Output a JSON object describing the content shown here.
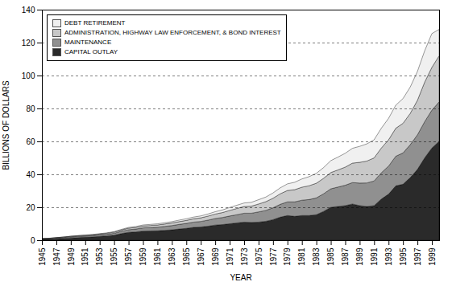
{
  "chart_data": {
    "type": "area",
    "stacked": true,
    "xlabel": "YEAR",
    "ylabel": "BILLIONS OF DOLLARS",
    "x": [
      1945,
      1946,
      1947,
      1948,
      1949,
      1950,
      1951,
      1952,
      1953,
      1954,
      1955,
      1956,
      1957,
      1958,
      1959,
      1960,
      1961,
      1962,
      1963,
      1964,
      1965,
      1966,
      1967,
      1968,
      1969,
      1970,
      1971,
      1972,
      1973,
      1974,
      1975,
      1976,
      1977,
      1978,
      1979,
      1980,
      1981,
      1982,
      1983,
      1984,
      1985,
      1986,
      1987,
      1988,
      1989,
      1990,
      1991,
      1992,
      1993,
      1994,
      1995,
      1996,
      1997,
      1998,
      1999,
      2000
    ],
    "series": [
      {
        "name": "CAPITAL OUTLAY",
        "color": "#2a2a2a",
        "values": [
          0.5,
          0.6,
          0.9,
          1.1,
          1.4,
          1.6,
          1.8,
          2.0,
          2.3,
          2.6,
          3.0,
          4.0,
          4.8,
          5.0,
          5.5,
          5.6,
          5.7,
          6.0,
          6.3,
          6.8,
          7.2,
          7.8,
          8.0,
          8.5,
          9.2,
          9.5,
          10.0,
          10.5,
          11.0,
          10.8,
          11.0,
          11.5,
          12.5,
          14.0,
          15.0,
          14.5,
          15.0,
          15.0,
          15.5,
          17.5,
          20.0,
          20.5,
          21.0,
          22.0,
          21.0,
          20.5,
          21.0,
          25.0,
          28.0,
          33.0,
          34.0,
          38.0,
          43.0,
          50.0,
          56.0,
          60.0
        ]
      },
      {
        "name": "MAINTENANCE",
        "color": "#909090",
        "values": [
          0.3,
          0.35,
          0.4,
          0.5,
          0.6,
          0.7,
          0.75,
          0.8,
          0.9,
          1.0,
          1.2,
          1.4,
          1.6,
          1.8,
          2.0,
          2.1,
          2.2,
          2.4,
          2.6,
          2.8,
          3.0,
          3.2,
          3.4,
          3.7,
          4.0,
          4.3,
          4.7,
          5.0,
          5.4,
          5.6,
          6.2,
          6.6,
          7.2,
          7.8,
          8.3,
          8.8,
          9.3,
          9.7,
          10.2,
          10.7,
          11.2,
          11.8,
          12.4,
          13.0,
          13.7,
          14.3,
          15.0,
          16.0,
          17.0,
          18.0,
          19.0,
          20.0,
          21.0,
          22.0,
          23.0,
          24.0
        ]
      },
      {
        "name": "ADMINISTRATION, HIGHWAY LAW ENFORCEMENT, & BOND INTEREST",
        "color": "#c8c8c8",
        "values": [
          0.15,
          0.18,
          0.22,
          0.27,
          0.32,
          0.37,
          0.42,
          0.47,
          0.53,
          0.6,
          0.7,
          0.8,
          0.92,
          1.0,
          1.15,
          1.25,
          1.35,
          1.45,
          1.55,
          1.7,
          1.85,
          2.0,
          2.2,
          2.45,
          2.7,
          3.0,
          3.4,
          3.8,
          4.1,
          4.3,
          4.8,
          5.3,
          5.8,
          6.4,
          6.9,
          7.4,
          7.9,
          8.4,
          8.9,
          9.4,
          9.9,
          10.4,
          11.0,
          11.8,
          12.6,
          13.3,
          14.0,
          15.0,
          16.0,
          17.0,
          18.0,
          19.0,
          21.0,
          24.0,
          26.0,
          28.0
        ]
      },
      {
        "name": "DEBT RETIREMENT",
        "color": "#f0f0f0",
        "values": [
          0.08,
          0.09,
          0.1,
          0.12,
          0.14,
          0.17,
          0.2,
          0.22,
          0.25,
          0.28,
          0.32,
          0.38,
          0.45,
          0.52,
          0.6,
          0.65,
          0.7,
          0.75,
          0.82,
          0.9,
          0.98,
          1.05,
          1.15,
          1.28,
          1.42,
          1.58,
          1.78,
          1.95,
          2.1,
          2.3,
          2.6,
          2.8,
          3.2,
          3.6,
          4.0,
          4.5,
          5.0,
          5.5,
          6.0,
          6.5,
          7.2,
          7.8,
          8.4,
          9.0,
          9.7,
          10.4,
          11.0,
          12.0,
          13.0,
          14.0,
          15.0,
          16.0,
          17.5,
          19.0,
          20.5,
          16.0
        ]
      }
    ],
    "xlim": [
      1945,
      2000
    ],
    "xticks": [
      1945,
      1947,
      1949,
      1951,
      1953,
      1955,
      1957,
      1959,
      1961,
      1963,
      1965,
      1967,
      1969,
      1971,
      1973,
      1975,
      1977,
      1979,
      1981,
      1983,
      1985,
      1987,
      1989,
      1991,
      1993,
      1995,
      1997,
      1999
    ],
    "ylim": [
      0,
      140
    ],
    "yticks": [
      0,
      20,
      40,
      60,
      80,
      100,
      120,
      140
    ],
    "grid": true,
    "legend": "upper left"
  }
}
